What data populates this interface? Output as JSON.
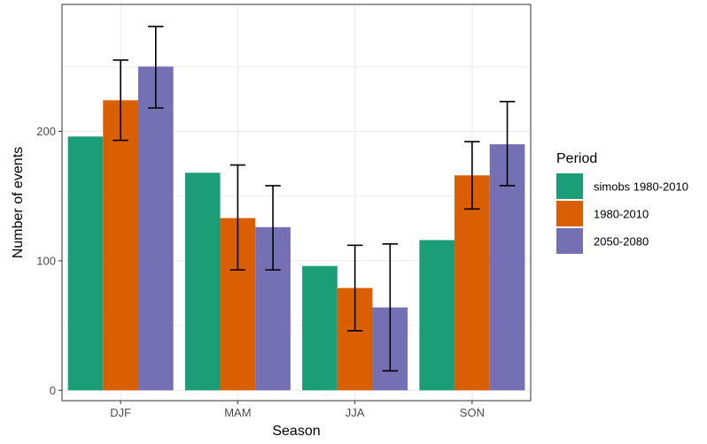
{
  "chart_data": {
    "type": "bar",
    "title": "",
    "xlabel": "Season",
    "ylabel": "Number of events",
    "categories": [
      "DJF",
      "MAM",
      "JJA",
      "SON"
    ],
    "ylim": [
      -8,
      298
    ],
    "yticks": [
      0,
      100,
      200
    ],
    "grid": true,
    "legend": {
      "title": "Period",
      "placement": "right"
    },
    "series": [
      {
        "name": "simobs 1980-2010",
        "color": "#1b9e77",
        "values": [
          196,
          168,
          96,
          116
        ],
        "err_low": [
          null,
          null,
          null,
          null
        ],
        "err_high": [
          null,
          null,
          null,
          null
        ]
      },
      {
        "name": "1980-2010",
        "color": "#d95f02",
        "values": [
          224,
          133,
          79,
          166
        ],
        "err_low": [
          193,
          93,
          46,
          140
        ],
        "err_high": [
          255,
          174,
          112,
          192
        ]
      },
      {
        "name": "2050-2080",
        "color": "#7570b3",
        "values": [
          250,
          126,
          64,
          190
        ],
        "err_low": [
          218,
          93,
          15,
          158
        ],
        "err_high": [
          281,
          158,
          113,
          223
        ]
      }
    ]
  }
}
